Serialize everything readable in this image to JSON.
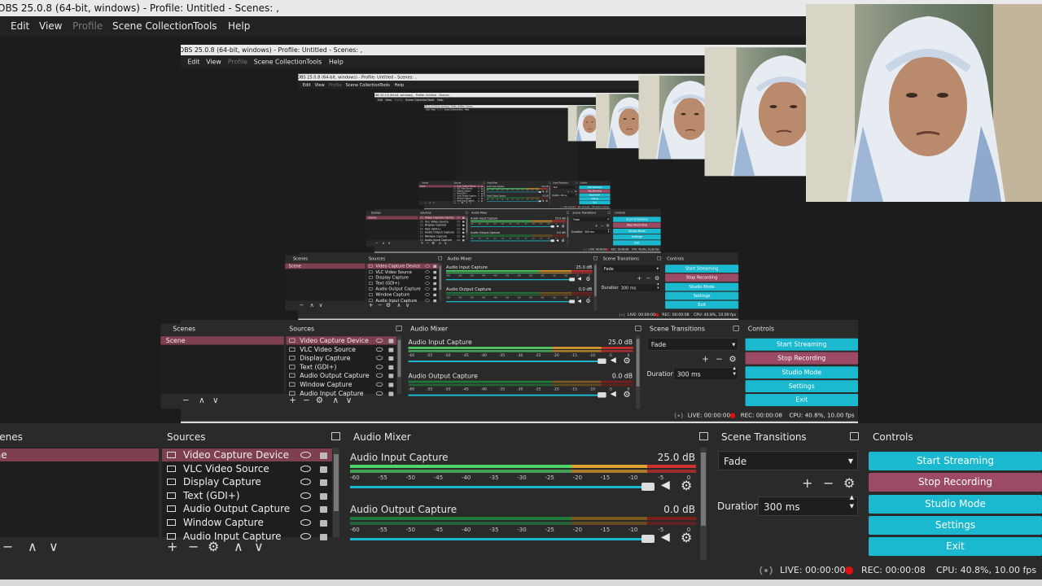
{
  "window": {
    "title": "OBS 25.0.8 (64-bit, windows) - Profile: Untitled - Scenes: ,"
  },
  "menu": [
    "Edit",
    "View",
    "Profile",
    "Scene Collection",
    "Tools",
    "Help"
  ],
  "docks": {
    "scenes": {
      "title": "Scenes",
      "items": [
        "Scene"
      ]
    },
    "sources": {
      "title": "Sources",
      "items": [
        "Video Capture Device",
        "VLC Video Source",
        "Display Capture",
        "Text (GDI+)",
        "Audio Output Capture",
        "Window Capture",
        "Audio Input Capture"
      ]
    },
    "audio_mixer": {
      "title": "Audio Mixer",
      "channels": [
        {
          "name": "Audio Input Capture",
          "level": "25.0 dB"
        },
        {
          "name": "Audio Output Capture",
          "level": "0.0 dB"
        }
      ],
      "meter_ticks": [
        -60,
        -55,
        -50,
        -45,
        -40,
        -35,
        -30,
        -25,
        -20,
        -15,
        -10,
        -5,
        0
      ]
    },
    "scene_transitions": {
      "title": "Scene Transitions",
      "transition": "Fade",
      "duration_label": "Duration",
      "duration": "300 ms"
    },
    "controls": {
      "title": "Controls",
      "buttons": [
        "Start Streaming",
        "Stop Recording",
        "Studio Mode",
        "Settings",
        "Exit"
      ]
    }
  },
  "status": {
    "live": "LIVE: 00:00:00",
    "rec": "REC: 00:00:08",
    "cpu": "CPU: 40.8%, 10.00 fps"
  }
}
